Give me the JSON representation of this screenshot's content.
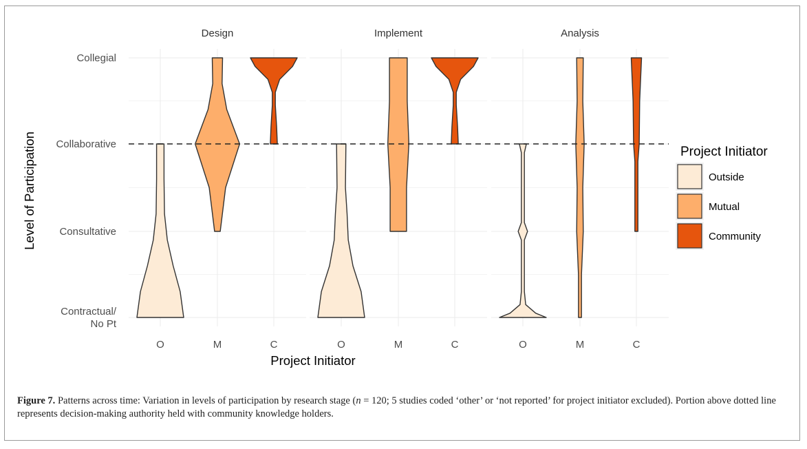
{
  "chart_data": {
    "type": "violin",
    "panels": [
      "Design",
      "Implement",
      "Analysis"
    ],
    "categories": [
      "O",
      "M",
      "C"
    ],
    "y_levels": [
      "Contractual/\nNo Pt",
      "Consultative",
      "Collaborative",
      "Collegial"
    ],
    "xlabel": "Project Initiator",
    "ylabel": "Level of Participation",
    "reference_line": {
      "level": 3,
      "style": "dashed"
    },
    "legend": {
      "title": "Project Initiator",
      "placement": "right",
      "entries": [
        {
          "name": "Outside",
          "color": "#fdebd6"
        },
        {
          "name": "Mutual",
          "color": "#fdae6b"
        },
        {
          "name": "Community",
          "color": "#e6550d"
        }
      ]
    },
    "series": [
      {
        "name": "Outside",
        "panel": "Design",
        "category": "O",
        "range": [
          1,
          3
        ],
        "profile": [
          [
            1,
            1.0
          ],
          [
            1.3,
            0.85
          ],
          [
            1.6,
            0.55
          ],
          [
            1.9,
            0.3
          ],
          [
            2.2,
            0.18
          ],
          [
            2.6,
            0.16
          ],
          [
            3,
            0.16
          ]
        ]
      },
      {
        "name": "Mutual",
        "panel": "Design",
        "category": "M",
        "range": [
          2,
          4
        ],
        "profile": [
          [
            2,
            0.12
          ],
          [
            2.5,
            0.35
          ],
          [
            3,
            0.95
          ],
          [
            3.4,
            0.4
          ],
          [
            3.7,
            0.2
          ],
          [
            4,
            0.22
          ]
        ]
      },
      {
        "name": "Community",
        "panel": "Design",
        "category": "C",
        "range": [
          3,
          4
        ],
        "profile": [
          [
            3,
            0.15
          ],
          [
            3.2,
            0.12
          ],
          [
            3.45,
            0.03
          ],
          [
            3.6,
            0.03
          ],
          [
            3.75,
            0.25
          ],
          [
            3.9,
            0.8
          ],
          [
            4,
            1.0
          ]
        ]
      },
      {
        "name": "Outside",
        "panel": "Implement",
        "category": "O",
        "range": [
          1,
          3
        ],
        "profile": [
          [
            1,
            1.0
          ],
          [
            1.3,
            0.85
          ],
          [
            1.6,
            0.5
          ],
          [
            1.9,
            0.3
          ],
          [
            2.2,
            0.25
          ],
          [
            2.5,
            0.18
          ],
          [
            3,
            0.2
          ]
        ]
      },
      {
        "name": "Mutual",
        "panel": "Implement",
        "category": "M",
        "range": [
          2,
          4
        ],
        "profile": [
          [
            2,
            0.35
          ],
          [
            2.5,
            0.35
          ],
          [
            3,
            0.45
          ],
          [
            3.5,
            0.38
          ],
          [
            4,
            0.38
          ]
        ]
      },
      {
        "name": "Community",
        "panel": "Implement",
        "category": "C",
        "range": [
          3,
          4
        ],
        "profile": [
          [
            3,
            0.15
          ],
          [
            3.2,
            0.12
          ],
          [
            3.45,
            0.03
          ],
          [
            3.6,
            0.03
          ],
          [
            3.75,
            0.25
          ],
          [
            3.9,
            0.8
          ],
          [
            4,
            1.0
          ]
        ]
      },
      {
        "name": "Outside",
        "panel": "Analysis",
        "category": "O",
        "range": [
          1,
          3
        ],
        "profile": [
          [
            1,
            1.0
          ],
          [
            1.05,
            0.55
          ],
          [
            1.15,
            0.12
          ],
          [
            1.3,
            0.03
          ],
          [
            1.7,
            0.05
          ],
          [
            1.9,
            0.05
          ],
          [
            2,
            0.2
          ],
          [
            2.1,
            0.05
          ],
          [
            2.4,
            0.04
          ],
          [
            2.8,
            0.04
          ],
          [
            2.9,
            0.06
          ],
          [
            3,
            0.15
          ]
        ]
      },
      {
        "name": "Mutual",
        "panel": "Analysis",
        "category": "M",
        "range": [
          1,
          4
        ],
        "profile": [
          [
            1,
            0.05
          ],
          [
            1.5,
            0.05
          ],
          [
            2,
            0.14
          ],
          [
            2.5,
            0.12
          ],
          [
            3,
            0.18
          ],
          [
            3.5,
            0.12
          ],
          [
            4,
            0.14
          ]
        ]
      },
      {
        "name": "Community",
        "panel": "Analysis",
        "category": "C",
        "range": [
          2,
          4
        ],
        "profile": [
          [
            2,
            0.03
          ],
          [
            2.5,
            0.03
          ],
          [
            2.8,
            0.04
          ],
          [
            3,
            0.12
          ],
          [
            3.5,
            0.14
          ],
          [
            4,
            0.22
          ]
        ]
      }
    ]
  },
  "caption": {
    "label": "Figure 7.",
    "text_1": " Patterns across time: Variation in levels of participation by research stage (",
    "n_var": "n",
    "text_2": " = 120; 5 studies coded ‘other’ or ‘not reported’ for project initiator excluded). Portion above dotted line represents decision-making authority held with community knowledge holders."
  }
}
